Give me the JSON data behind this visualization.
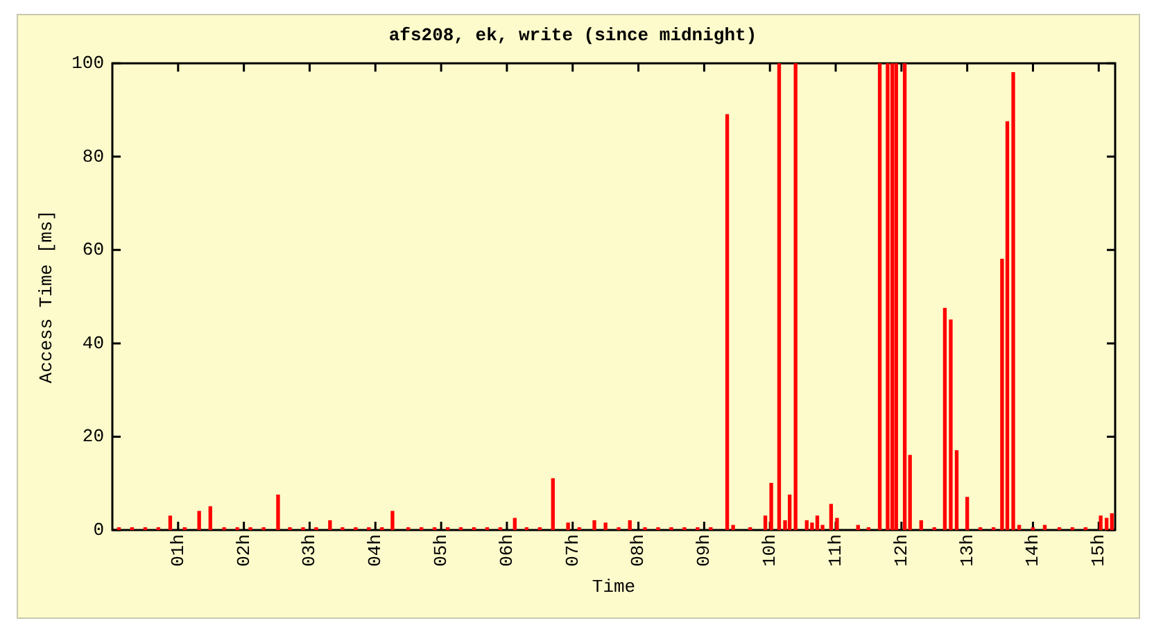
{
  "chart_data": {
    "type": "bar",
    "title": "afs208, ek, write (since midnight)",
    "xlabel": "Time",
    "ylabel": "Access Time [ms]",
    "x": [
      0.1,
      0.3,
      0.5,
      0.7,
      0.88,
      1.1,
      1.32,
      1.49,
      1.7,
      1.9,
      2.1,
      2.3,
      2.52,
      2.7,
      2.9,
      3.1,
      3.31,
      3.5,
      3.7,
      3.9,
      4.1,
      4.26,
      4.5,
      4.7,
      4.9,
      5.1,
      5.3,
      5.5,
      5.7,
      5.9,
      6.12,
      6.3,
      6.5,
      6.7,
      6.93,
      7.1,
      7.33,
      7.5,
      7.7,
      7.87,
      8.1,
      8.3,
      8.5,
      8.7,
      8.9,
      9.1,
      9.35,
      9.44,
      9.7,
      9.93,
      10.02,
      10.14,
      10.23,
      10.3,
      10.39,
      10.56,
      10.64,
      10.72,
      10.8,
      10.93,
      11.02,
      11.34,
      11.5,
      11.67,
      11.79,
      11.86,
      11.92,
      12.05,
      12.13,
      12.3,
      12.5,
      12.66,
      12.75,
      12.84,
      13.0,
      13.2,
      13.4,
      13.53,
      13.61,
      13.7,
      13.79,
      14.0,
      14.18,
      14.4,
      14.6,
      14.8,
      15.03,
      15.12,
      15.2
    ],
    "series": [
      {
        "color": "#ff0000",
        "values": [
          0.5,
          0.5,
          0.5,
          0.5,
          3,
          0.5,
          4,
          5,
          0.5,
          0.5,
          0.5,
          0.5,
          7.5,
          0.5,
          0.5,
          0.5,
          2,
          0.5,
          0.5,
          0.5,
          0.5,
          4,
          0.5,
          0.5,
          0.5,
          0.5,
          0.5,
          0.5,
          0.5,
          0.5,
          2.5,
          0.5,
          0.5,
          11,
          1.5,
          0.5,
          2,
          1.5,
          0.5,
          2,
          0.5,
          0.5,
          0.5,
          0.5,
          0.5,
          0.5,
          89,
          1,
          0.5,
          3,
          10,
          100,
          2,
          7.5,
          100,
          2,
          1.5,
          3,
          1,
          5.5,
          2.5,
          1,
          0.5,
          100,
          100,
          100,
          100,
          100,
          16,
          2,
          0.5,
          47.5,
          45,
          17,
          7,
          0.5,
          0.5,
          58,
          87.5,
          98,
          1,
          0.5,
          1,
          0.5,
          0.5,
          0.5,
          3,
          2.5,
          3.5
        ]
      }
    ],
    "xlim": [
      0,
      15.25
    ],
    "xticks": [
      {
        "value": 1,
        "label": "01h"
      },
      {
        "value": 2,
        "label": "02h"
      },
      {
        "value": 3,
        "label": "03h"
      },
      {
        "value": 4,
        "label": "04h"
      },
      {
        "value": 5,
        "label": "05h"
      },
      {
        "value": 6,
        "label": "06h"
      },
      {
        "value": 7,
        "label": "07h"
      },
      {
        "value": 8,
        "label": "08h"
      },
      {
        "value": 9,
        "label": "09h"
      },
      {
        "value": 10,
        "label": "10h"
      },
      {
        "value": 11,
        "label": "11h"
      },
      {
        "value": 12,
        "label": "12h"
      },
      {
        "value": 13,
        "label": "13h"
      },
      {
        "value": 14,
        "label": "14h"
      },
      {
        "value": 15,
        "label": "15h"
      }
    ],
    "ylim": [
      0,
      100
    ],
    "yticks": [
      0,
      20,
      40,
      60,
      80,
      100
    ],
    "grid": false,
    "legend": false
  }
}
